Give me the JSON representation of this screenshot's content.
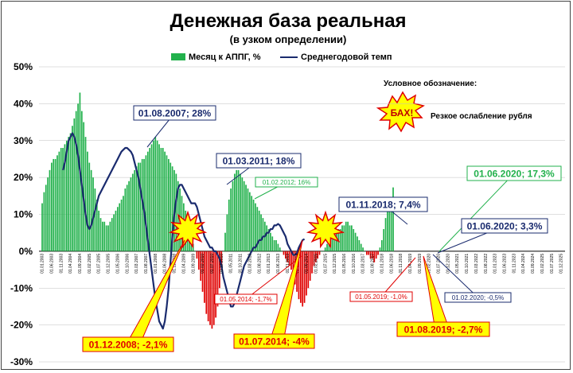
{
  "chart_data": {
    "type": "bar",
    "title": "Денежная база реальная",
    "subtitle": "(в узком определении)",
    "ylim": [
      -30,
      50
    ],
    "yticks": [
      "50%",
      "40%",
      "30%",
      "20%",
      "10%",
      "0%",
      "-10%",
      "-20%",
      "-30%"
    ],
    "legend_position": "top",
    "series": [
      {
        "name": "Месяц к АППГ, %",
        "color_pos": "#22b14c",
        "color_neg": "#e00000",
        "start": "2003-01",
        "values": [
          13,
          16,
          18,
          20,
          22,
          24,
          25,
          25,
          26,
          27,
          28,
          28,
          29,
          30,
          31,
          32,
          34,
          36,
          38,
          40,
          43,
          38,
          35,
          31,
          27,
          24,
          22,
          20,
          17,
          14,
          11,
          9,
          8,
          8,
          7,
          7,
          8,
          9,
          10,
          11,
          12,
          13,
          14,
          15,
          17,
          18,
          19,
          20,
          21,
          22,
          23,
          24,
          24,
          25,
          25,
          26,
          27,
          28,
          29,
          30,
          31,
          30,
          29,
          28,
          28,
          27,
          26,
          25,
          24,
          23,
          22,
          21,
          19,
          17,
          15,
          13,
          11,
          9,
          6,
          4,
          2,
          0,
          -2,
          -5,
          -8,
          -11,
          -14,
          -17,
          -19,
          -20,
          -21,
          -20,
          -18,
          -15,
          -10,
          -5,
          0,
          5,
          10,
          14,
          17,
          19,
          21,
          22,
          22,
          21,
          20,
          19,
          18,
          17,
          16,
          15,
          14,
          13,
          12,
          11,
          10,
          9,
          8,
          7,
          6,
          5,
          4,
          3,
          3,
          2,
          1,
          0,
          -1,
          -2,
          -3,
          -4,
          -5,
          -7,
          -9,
          -11,
          -13,
          -14,
          -15,
          -14,
          -12,
          -10,
          -8,
          -6,
          -4,
          -3,
          -2,
          -1,
          0,
          0,
          1,
          2,
          3,
          4,
          4,
          5,
          5,
          6,
          6,
          7,
          7,
          8,
          8,
          7,
          7,
          6,
          5,
          4,
          3,
          2,
          1,
          0,
          -1,
          -1,
          -2,
          -2,
          -3,
          -2,
          -1,
          1,
          3,
          6,
          9,
          11,
          13,
          14.6,
          17.3
        ]
      },
      {
        "name": "Среднегодовой темп",
        "color": "#1a2b6e",
        "start": "2003-12",
        "values": [
          22,
          24,
          27,
          30,
          31,
          32,
          31,
          29,
          26,
          22,
          18,
          14,
          10,
          7,
          6,
          7,
          9,
          11,
          13,
          15,
          16,
          17,
          18,
          19,
          20,
          21,
          22,
          23,
          24,
          25,
          26,
          27,
          27.5,
          28,
          28,
          27.5,
          27,
          26,
          24,
          22,
          20,
          17,
          14,
          11,
          7,
          3,
          -1,
          -5,
          -9,
          -13,
          -16,
          -19,
          -20,
          -21,
          -19,
          -15,
          -10,
          -3,
          4,
          10,
          14,
          17,
          18,
          18,
          17,
          16,
          15,
          14,
          13,
          13,
          13,
          12,
          10,
          8,
          6,
          4,
          3,
          2,
          1,
          1,
          0,
          0,
          -1,
          -2,
          -4,
          -7,
          -9,
          -11,
          -13,
          -15,
          -15,
          -14,
          -12,
          -10,
          -8,
          -6,
          -4,
          -3,
          -2,
          -1,
          0,
          1,
          1,
          2,
          3,
          3,
          4,
          4,
          5,
          5,
          6,
          6,
          7,
          7,
          7.4,
          7,
          6,
          5,
          4,
          2,
          1,
          0,
          -1,
          -1,
          -0.5,
          1,
          2,
          3,
          3.3
        ]
      }
    ],
    "annotations": [
      {
        "text": "01.08.2007; 28%",
        "style": "navy"
      },
      {
        "text": "01.03.2011; 18%",
        "style": "navy"
      },
      {
        "text": "01.02.2012; 16%",
        "style": "green-small"
      },
      {
        "text": "01.11.2018; 7,4%",
        "style": "navy"
      },
      {
        "text": "01.06.2020; 17,3%",
        "style": "green"
      },
      {
        "text": "01.06.2020; 3,3%",
        "style": "navy"
      },
      {
        "text": "01.05.2014; -1,7%",
        "style": "red-small"
      },
      {
        "text": "01.05.2019; -1,0%",
        "style": "red-small"
      },
      {
        "text": "01.02.2020; -0,5%",
        "style": "navy-small"
      },
      {
        "text": "01.12.2008; -2,1%",
        "style": "red-yellow"
      },
      {
        "text": "01.07.2014; -4%",
        "style": "red-yellow"
      },
      {
        "text": "01.08.2019; -2,7%",
        "style": "red-yellow"
      }
    ],
    "legend_note": {
      "header": "Условное обозначение:",
      "burst_text": "БАХ!",
      "meaning": "Резкое ослабление рубля"
    },
    "x_tick_labels": [
      "01.01.2003",
      "01.06.2003",
      "01.11.2003",
      "01.04.2004",
      "01.09.2004",
      "01.02.2005",
      "01.07.2005",
      "01.12.2005",
      "01.05.2006",
      "01.10.2006",
      "01.03.2007",
      "01.08.2007",
      "01.01.2008",
      "01.06.2008",
      "01.11.2008",
      "01.04.2009",
      "01.09.2009",
      "01.02.2010",
      "01.07.2010",
      "01.12.2010",
      "01.05.2011",
      "01.10.2011",
      "01.03.2012",
      "01.08.2012",
      "01.01.2013",
      "01.06.2013",
      "01.11.2013",
      "01.04.2014",
      "01.09.2014",
      "01.02.2015",
      "01.07.2015",
      "01.12.2015",
      "01.05.2016",
      "01.10.2016",
      "01.03.2017",
      "01.08.2017",
      "01.01.2018",
      "01.06.2018",
      "01.11.2018",
      "01.04.2019",
      "01.09.2019",
      "01.02.2020",
      "01.07.2020",
      "01.12.2020",
      "01.05.2021",
      "01.10.2021",
      "01.03.2022",
      "01.08.2022",
      "01.01.2023",
      "01.06.2023",
      "01.11.2023",
      "01.04.2024",
      "01.09.2024",
      "01.02.2025",
      "01.07.2025",
      "01.12.2025"
    ]
  }
}
